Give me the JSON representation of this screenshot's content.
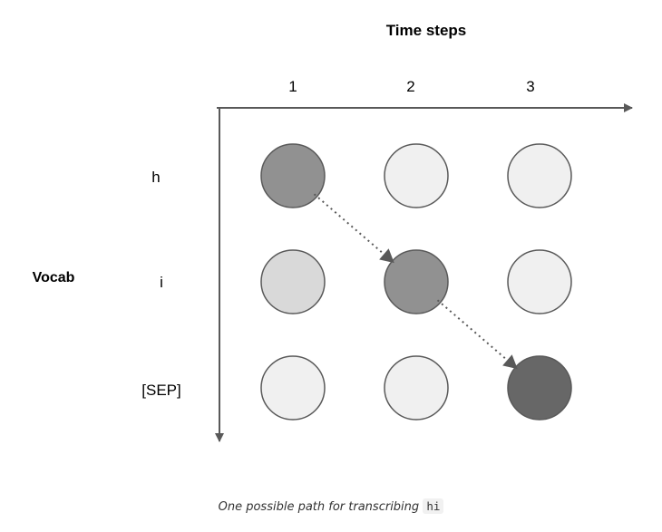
{
  "diagram": {
    "title": "Time steps",
    "x_axis_label": "Time steps",
    "y_axis_label": "Vocab",
    "time_steps": [
      "1",
      "2",
      "3"
    ],
    "vocab": [
      "h",
      "i",
      "[SEP]"
    ],
    "grid": [
      [
        "#919191",
        "#f0f0f0",
        "#f0f0f0"
      ],
      [
        "#d9d9d9",
        "#919191",
        "#f0f0f0"
      ],
      [
        "#f0f0f0",
        "#f0f0f0",
        "#676767"
      ]
    ],
    "path": [
      {
        "step": "1",
        "token": "h"
      },
      {
        "step": "2",
        "token": "i"
      },
      {
        "step": "3",
        "token": "[SEP]"
      }
    ],
    "colors": {
      "axis": "#595959",
      "circle_stroke": "#595959",
      "path_arrow": "#595959"
    }
  },
  "caption": {
    "text": "One possible path for transcribing",
    "code": "hi"
  }
}
